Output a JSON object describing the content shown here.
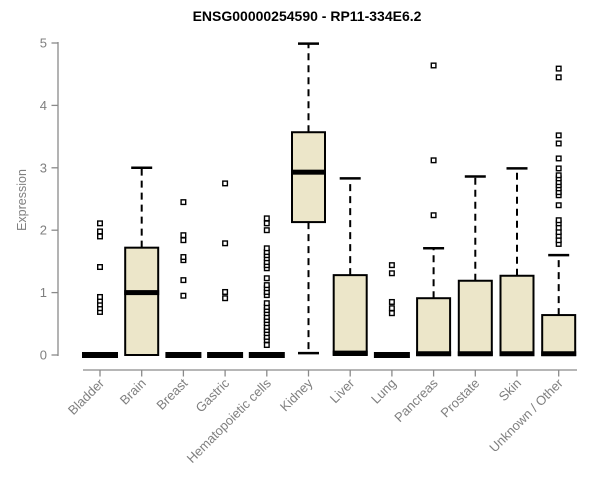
{
  "chart_data": {
    "type": "boxplot",
    "title": "ENSG00000254590 - RP11-334E6.2",
    "xlabel": "",
    "ylabel": "Expression",
    "ylim": [
      0,
      5
    ],
    "yticks": [
      0,
      1,
      2,
      3,
      4,
      5
    ],
    "grid": false,
    "legend": false,
    "categories": [
      "Bladder",
      "Brain",
      "Breast",
      "Gastric",
      "Hematopoietic cells",
      "Kidney",
      "Liver",
      "Lung",
      "Pancreas",
      "Prostate",
      "Skin",
      "Unknown / Other"
    ],
    "series": [
      {
        "category": "Bladder",
        "q1": 0,
        "median": 0,
        "q3": 0,
        "whisker_low": 0,
        "whisker_high": 0,
        "outliers": [
          0.69,
          0.75,
          0.81,
          0.87,
          0.93,
          1.41,
          1.9,
          1.98,
          2.11
        ]
      },
      {
        "category": "Brain",
        "q1": 0,
        "median": 1.0,
        "q3": 1.72,
        "whisker_low": 0,
        "whisker_high": 3.0,
        "outliers": []
      },
      {
        "category": "Breast",
        "q1": 0,
        "median": 0,
        "q3": 0,
        "whisker_low": 0,
        "whisker_high": 0,
        "outliers": [
          0.95,
          1.2,
          1.52,
          1.57,
          1.84,
          1.92,
          2.45
        ]
      },
      {
        "category": "Gastric",
        "q1": 0,
        "median": 0,
        "q3": 0,
        "whisker_low": 0,
        "whisker_high": 0,
        "outliers": [
          0.91,
          1.01,
          1.79,
          2.75
        ]
      },
      {
        "category": "Hematopoietic cells",
        "q1": 0,
        "median": 0,
        "q3": 0,
        "whisker_low": 0,
        "whisker_high": 0,
        "outliers": [
          0.16,
          0.24,
          0.29,
          0.35,
          0.4,
          0.45,
          0.51,
          0.56,
          0.61,
          0.67,
          0.72,
          0.77,
          0.83,
          0.96,
          1.01,
          1.07,
          1.12,
          1.23,
          1.39,
          1.44,
          1.49,
          1.55,
          1.6,
          1.65,
          1.71,
          2.0,
          2.11,
          2.19
        ]
      },
      {
        "category": "Kidney",
        "q1": 2.13,
        "median": 2.93,
        "q3": 3.57,
        "whisker_low": 0.03,
        "whisker_high": 4.99,
        "outliers": []
      },
      {
        "category": "Liver",
        "q1": 0,
        "median": 0.03,
        "q3": 1.28,
        "whisker_low": 0,
        "whisker_high": 2.83,
        "outliers": []
      },
      {
        "category": "Lung",
        "q1": 0,
        "median": 0,
        "q3": 0,
        "whisker_low": 0,
        "whisker_high": 0,
        "outliers": [
          0.67,
          0.75,
          0.85,
          1.31,
          1.44
        ]
      },
      {
        "category": "Pancreas",
        "q1": 0,
        "median": 0.02,
        "q3": 0.91,
        "whisker_low": 0,
        "whisker_high": 1.71,
        "outliers": [
          2.24,
          3.12,
          4.64
        ]
      },
      {
        "category": "Prostate",
        "q1": 0,
        "median": 0.02,
        "q3": 1.19,
        "whisker_low": 0,
        "whisker_high": 2.86,
        "outliers": []
      },
      {
        "category": "Skin",
        "q1": 0,
        "median": 0.02,
        "q3": 1.27,
        "whisker_low": 0,
        "whisker_high": 2.99,
        "outliers": []
      },
      {
        "category": "Unknown / Other",
        "q1": 0,
        "median": 0.02,
        "q3": 0.64,
        "whisker_low": 0,
        "whisker_high": 1.6,
        "outliers": [
          1.78,
          1.84,
          1.91,
          1.97,
          2.04,
          2.11,
          2.16,
          2.4,
          2.56,
          2.61,
          2.67,
          2.72,
          2.77,
          2.83,
          2.88,
          2.99,
          3.15,
          3.39,
          3.52,
          4.45,
          4.59
        ]
      }
    ],
    "colors": {
      "box_fill": "#ECE6C9",
      "box_border": "#000000",
      "median": "#000000",
      "whisker": "#000000",
      "outlier_fill": "#ffffff",
      "outlier_border": "#000000",
      "axis_line": "#8a8a8a",
      "tick_label": "#7f7f7f",
      "title": "#000000"
    }
  }
}
